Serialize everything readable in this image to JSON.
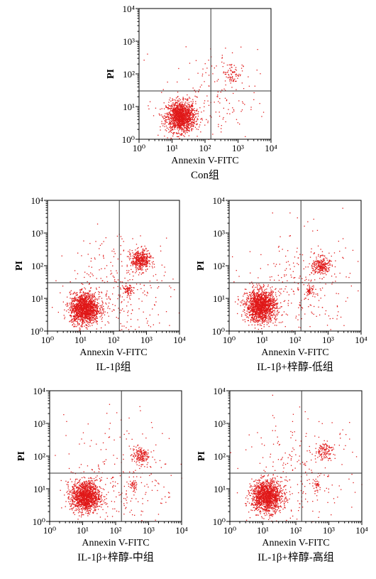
{
  "colors": {
    "dots": "#e01818",
    "axis": "#000000",
    "quadrant_line": "#333333"
  },
  "chart_data": [
    {
      "type": "scatter",
      "title": "Con组",
      "xlabel": "Annexin V-FITC",
      "ylabel": "PI",
      "x_scale": "log",
      "y_scale": "log",
      "xlim": [
        1,
        10000
      ],
      "ylim": [
        1,
        10000
      ],
      "x_tick_labels": [
        "10⁰",
        "10¹",
        "10²",
        "10³",
        "10⁴"
      ],
      "y_tick_labels": [
        "10⁰",
        "10¹",
        "10²",
        "10³",
        "10⁴"
      ],
      "quadrant_gate": {
        "x": 150,
        "y": 30
      },
      "populations": [
        {
          "center": [
            18,
            5
          ],
          "spread": 0.22,
          "count": 1400
        },
        {
          "center": [
            650,
            110
          ],
          "spread": 0.16,
          "count": 70
        },
        {
          "center": [
            120,
            15
          ],
          "spread": 0.75,
          "count": 180
        }
      ]
    },
    {
      "type": "scatter",
      "title": "IL-1β组",
      "xlabel": "Annexin V-FITC",
      "ylabel": "PI",
      "x_scale": "log",
      "y_scale": "log",
      "xlim": [
        1,
        10000
      ],
      "ylim": [
        1,
        10000
      ],
      "x_tick_labels": [
        "10⁰",
        "10¹",
        "10²",
        "10³",
        "10⁴"
      ],
      "y_tick_labels": [
        "10⁰",
        "10¹",
        "10²",
        "10³",
        "10⁴"
      ],
      "quadrant_gate": {
        "x": 150,
        "y": 30
      },
      "populations": [
        {
          "center": [
            13,
            5
          ],
          "spread": 0.22,
          "count": 1500
        },
        {
          "center": [
            650,
            150
          ],
          "spread": 0.15,
          "count": 420
        },
        {
          "center": [
            270,
            18
          ],
          "spread": 0.07,
          "count": 70
        },
        {
          "center": [
            150,
            20
          ],
          "spread": 0.8,
          "count": 320
        }
      ]
    },
    {
      "type": "scatter",
      "title": "IL-1β+梓醇-低组",
      "xlabel": "Annexin V-FITC",
      "ylabel": "PI",
      "x_scale": "log",
      "y_scale": "log",
      "xlim": [
        1,
        10000
      ],
      "ylim": [
        1,
        10000
      ],
      "x_tick_labels": [
        "10⁰",
        "10¹",
        "10²",
        "10³",
        "10⁴"
      ],
      "y_tick_labels": [
        "10⁰",
        "10¹",
        "10²",
        "10³",
        "10⁴"
      ],
      "quadrant_gate": {
        "x": 150,
        "y": 30
      },
      "populations": [
        {
          "center": [
            9,
            6
          ],
          "spread": 0.23,
          "count": 1500
        },
        {
          "center": [
            600,
            100
          ],
          "spread": 0.13,
          "count": 230
        },
        {
          "center": [
            270,
            18
          ],
          "spread": 0.06,
          "count": 50
        },
        {
          "center": [
            150,
            22
          ],
          "spread": 0.85,
          "count": 300
        }
      ]
    },
    {
      "type": "scatter",
      "title": "IL-1β+梓醇-中组",
      "xlabel": "Annexin V-FITC",
      "ylabel": "PI",
      "x_scale": "log",
      "y_scale": "log",
      "xlim": [
        1,
        10000
      ],
      "ylim": [
        1,
        10000
      ],
      "x_tick_labels": [
        "10⁰",
        "10¹",
        "10²",
        "10³",
        "10⁴"
      ],
      "y_tick_labels": [
        "10⁰",
        "10¹",
        "10²",
        "10³",
        "10⁴"
      ],
      "quadrant_gate": {
        "x": 150,
        "y": 30
      },
      "populations": [
        {
          "center": [
            12,
            6
          ],
          "spread": 0.22,
          "count": 1300
        },
        {
          "center": [
            550,
            110
          ],
          "spread": 0.13,
          "count": 160
        },
        {
          "center": [
            320,
            13
          ],
          "spread": 0.07,
          "count": 45
        },
        {
          "center": [
            150,
            25
          ],
          "spread": 0.85,
          "count": 260
        }
      ]
    },
    {
      "type": "scatter",
      "title": "IL-1β+梓醇-高组",
      "xlabel": "Annexin V-FITC",
      "ylabel": "PI",
      "x_scale": "log",
      "y_scale": "log",
      "xlim": [
        1,
        10000
      ],
      "ylim": [
        1,
        10000
      ],
      "x_tick_labels": [
        "10⁰",
        "10¹",
        "10²",
        "10³",
        "10⁴"
      ],
      "y_tick_labels": [
        "10⁰",
        "10¹",
        "10²",
        "10³",
        "10⁴"
      ],
      "quadrant_gate": {
        "x": 150,
        "y": 30
      },
      "populations": [
        {
          "center": [
            13,
            6
          ],
          "spread": 0.23,
          "count": 1400
        },
        {
          "center": [
            700,
            150
          ],
          "spread": 0.13,
          "count": 120
        },
        {
          "center": [
            400,
            13
          ],
          "spread": 0.06,
          "count": 30
        },
        {
          "center": [
            150,
            25
          ],
          "spread": 0.9,
          "count": 260
        }
      ]
    }
  ]
}
